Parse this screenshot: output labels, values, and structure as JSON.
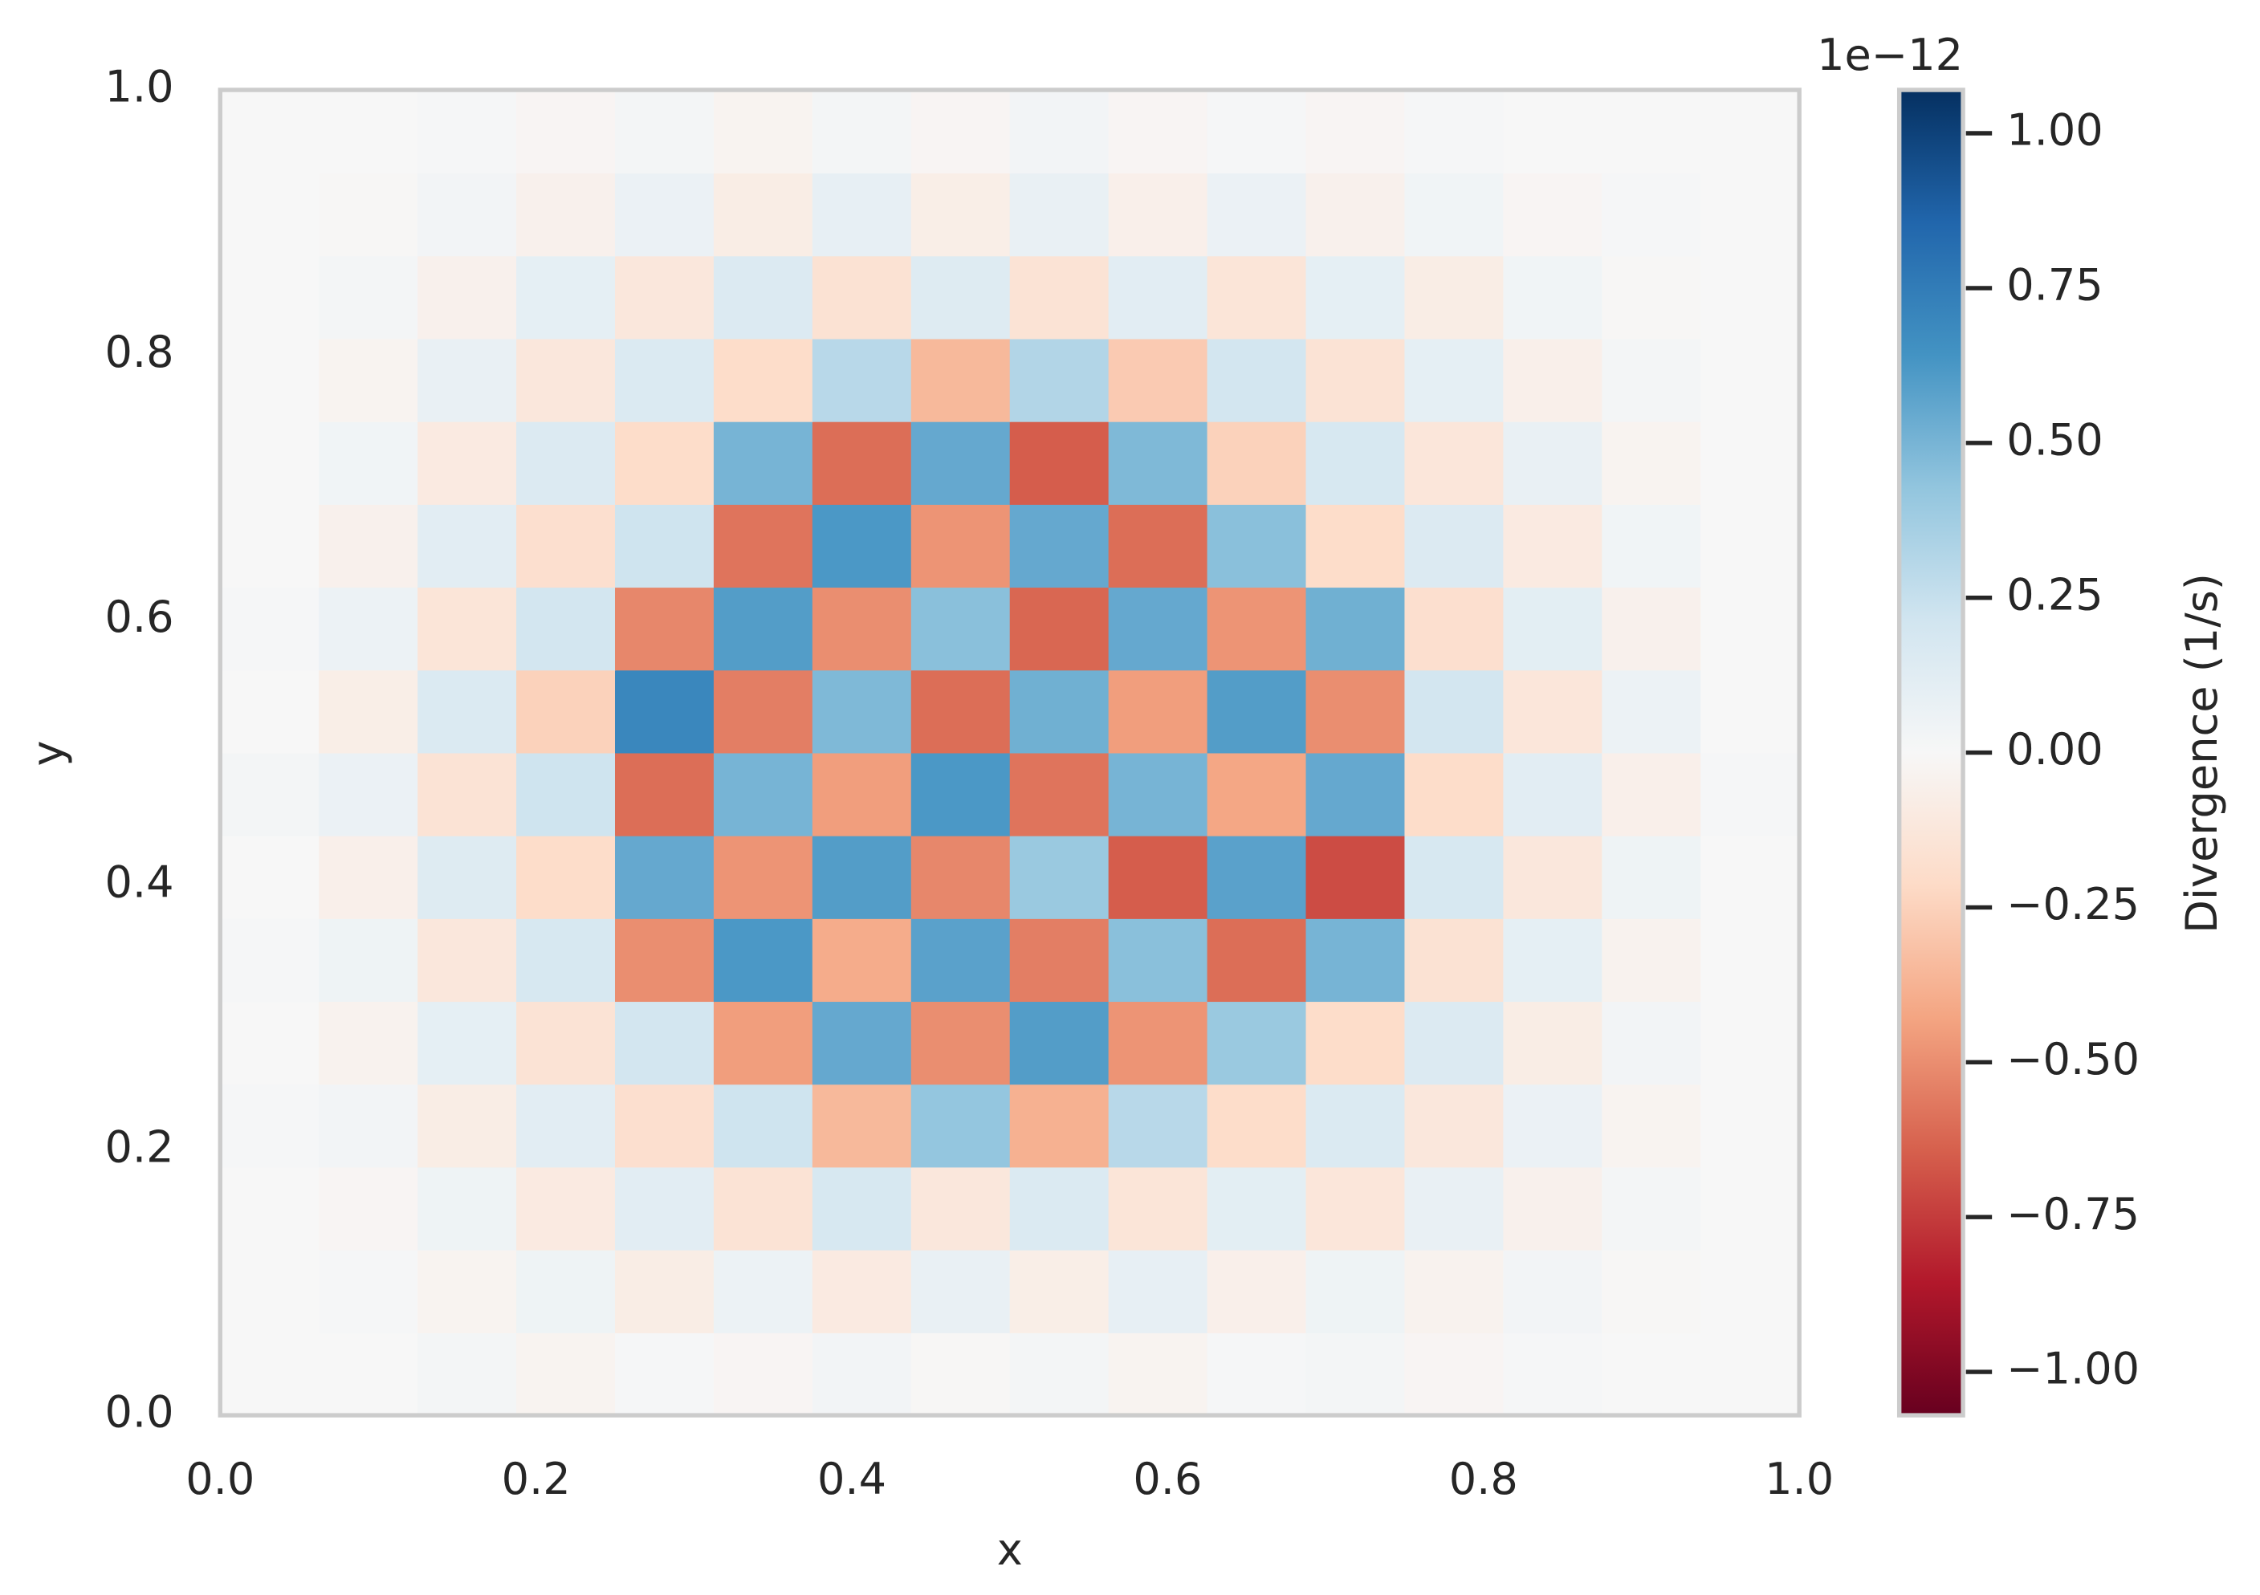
{
  "chart_data": {
    "type": "heatmap",
    "xlabel": "x",
    "ylabel": "y",
    "xlim": [
      0,
      1
    ],
    "ylim": [
      0,
      1
    ],
    "xticks": [
      {
        "value": 0,
        "label": "0.0"
      },
      0.2,
      0.4,
      0.6,
      0.8,
      {
        "value": 1,
        "label": "1.0"
      }
    ],
    "yticks": [
      {
        "value": 0,
        "label": "0.0"
      },
      0.2,
      0.4,
      0.6,
      0.8,
      {
        "value": 1,
        "label": "1.0"
      }
    ],
    "colorbar_label": "Divergence (1/s)",
    "colorbar_offset": "1e−12",
    "clim": [
      -1.07,
      1.07
    ],
    "colorbar_ticks": [
      {
        "value": -1,
        "label": "−1.00"
      },
      {
        "value": -0.75,
        "label": "−0.75"
      },
      {
        "value": -0.5,
        "label": "−0.50"
      },
      {
        "value": -0.25,
        "label": "−0.25"
      },
      {
        "value": 0,
        "label": "0.00"
      },
      {
        "value": 0.25,
        "label": "0.25"
      },
      {
        "value": 0.5,
        "label": "0.50"
      },
      {
        "value": 0.75,
        "label": "0.75"
      },
      {
        "value": 1,
        "label": "1.00"
      }
    ],
    "colormap": [
      "#67001f",
      "#b2182b",
      "#d6604d",
      "#f4a582",
      "#fddbc7",
      "#f7f7f7",
      "#d1e5f0",
      "#92c5de",
      "#4393c3",
      "#2166ac",
      "#053061"
    ],
    "z": [
      [
        0,
        0,
        0.02,
        -0.03,
        0.01,
        -0.02,
        0.03,
        -0.01,
        0.02,
        -0.03,
        0.01,
        0.02,
        -0.02,
        0.01,
        0,
        0
      ],
      [
        0,
        0.01,
        -0.03,
        0.05,
        -0.08,
        0.06,
        -0.1,
        0.08,
        -0.07,
        0.09,
        -0.06,
        0.05,
        -0.04,
        0.03,
        -0.01,
        0
      ],
      [
        0,
        -0.02,
        0.05,
        -0.1,
        0.12,
        -0.15,
        0.18,
        -0.12,
        0.16,
        -0.14,
        0.11,
        -0.13,
        0.08,
        -0.05,
        0.02,
        0
      ],
      [
        0.01,
        0.03,
        -0.08,
        0.12,
        -0.18,
        0.22,
        -0.35,
        0.42,
        -0.38,
        0.3,
        -0.2,
        0.16,
        -0.12,
        0.07,
        -0.03,
        0
      ],
      [
        0,
        -0.04,
        0.1,
        -0.15,
        0.2,
        -0.45,
        0.55,
        -0.5,
        0.6,
        -0.48,
        0.4,
        -0.2,
        0.15,
        -0.08,
        0.03,
        0
      ],
      [
        0.01,
        0.05,
        -0.12,
        0.18,
        -0.5,
        0.62,
        -0.4,
        0.58,
        -0.55,
        0.45,
        -0.6,
        0.5,
        -0.16,
        0.1,
        -0.04,
        0
      ],
      [
        0,
        -0.06,
        0.14,
        -0.2,
        0.55,
        -0.48,
        0.6,
        -0.52,
        0.4,
        -0.65,
        0.58,
        -0.7,
        0.18,
        -0.12,
        0.05,
        0
      ],
      [
        0.02,
        0.07,
        -0.15,
        0.22,
        -0.6,
        0.5,
        -0.45,
        0.62,
        -0.58,
        0.5,
        -0.42,
        0.55,
        -0.2,
        0.12,
        -0.06,
        0.01
      ],
      [
        0,
        -0.07,
        0.16,
        -0.25,
        0.7,
        -0.55,
        0.48,
        -0.6,
        0.52,
        -0.45,
        0.6,
        -0.5,
        0.2,
        -0.13,
        0.06,
        0
      ],
      [
        0.01,
        0.06,
        -0.14,
        0.2,
        -0.52,
        0.6,
        -0.5,
        0.45,
        -0.62,
        0.55,
        -0.48,
        0.52,
        -0.18,
        0.11,
        -0.05,
        0
      ],
      [
        0,
        -0.05,
        0.12,
        -0.18,
        0.22,
        -0.58,
        0.62,
        -0.48,
        0.55,
        -0.6,
        0.45,
        -0.2,
        0.15,
        -0.1,
        0.04,
        0
      ],
      [
        0,
        0.04,
        -0.1,
        0.15,
        -0.2,
        0.5,
        -0.6,
        0.55,
        -0.65,
        0.48,
        -0.25,
        0.18,
        -0.13,
        0.08,
        -0.03,
        0
      ],
      [
        0,
        -0.03,
        0.08,
        -0.12,
        0.16,
        -0.2,
        0.3,
        -0.35,
        0.32,
        -0.28,
        0.2,
        -0.15,
        0.1,
        -0.06,
        0.02,
        0
      ],
      [
        0,
        0.02,
        -0.05,
        0.1,
        -0.12,
        0.15,
        -0.16,
        0.14,
        -0.15,
        0.12,
        -0.14,
        0.1,
        -0.08,
        0.04,
        -0.01,
        0
      ],
      [
        0,
        -0.01,
        0.03,
        -0.05,
        0.07,
        -0.08,
        0.09,
        -0.07,
        0.08,
        -0.06,
        0.07,
        -0.05,
        0.04,
        -0.02,
        0.01,
        0
      ],
      [
        0,
        0,
        0.01,
        -0.02,
        0.02,
        -0.03,
        0.02,
        -0.02,
        0.03,
        -0.02,
        0.01,
        -0.02,
        0.01,
        0,
        0,
        0
      ]
    ]
  }
}
